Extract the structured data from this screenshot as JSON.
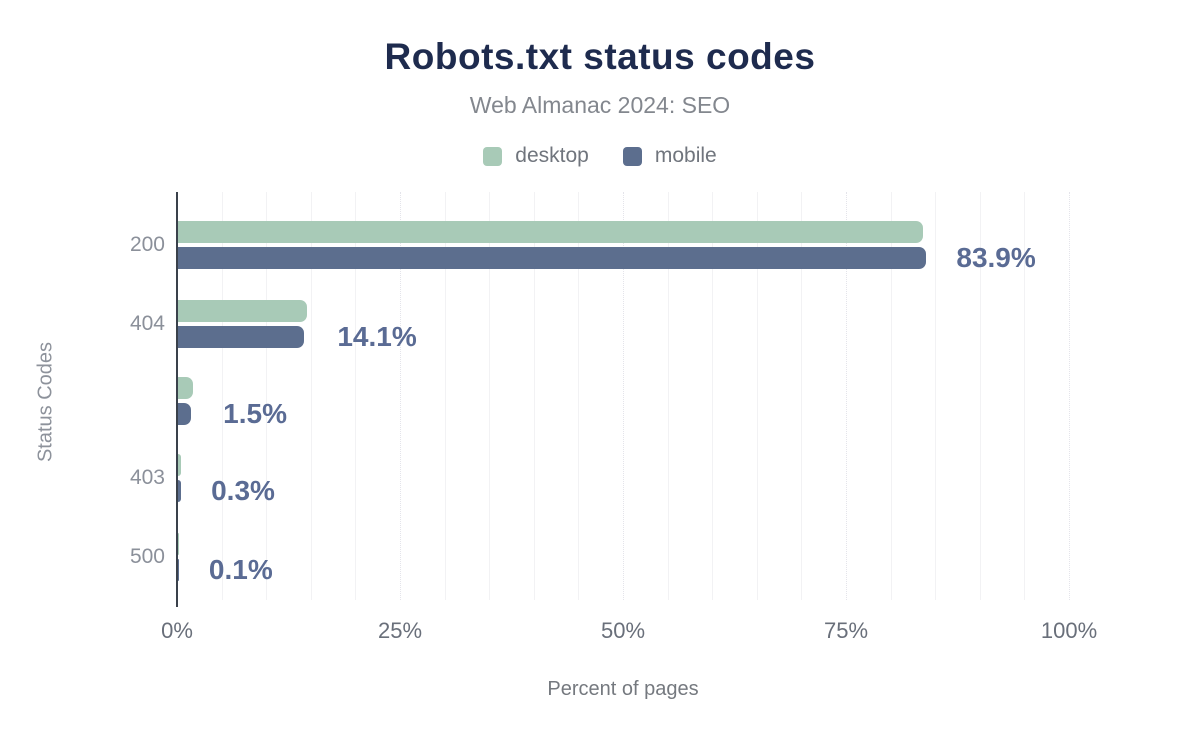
{
  "chart_data": {
    "type": "bar",
    "orientation": "horizontal",
    "title": "Robots.txt status codes",
    "subtitle": "Web Almanac 2024: SEO",
    "xlabel": "Percent of pages",
    "ylabel": "Status Codes",
    "categories": [
      "200",
      "404",
      "",
      "403",
      "500"
    ],
    "series": [
      {
        "name": "desktop",
        "color": "#a8cab7",
        "values": [
          83.5,
          14.5,
          1.7,
          0.35,
          0.1
        ]
      },
      {
        "name": "mobile",
        "color": "#5c6e8e",
        "values": [
          83.9,
          14.1,
          1.5,
          0.3,
          0.1
        ]
      }
    ],
    "value_labels": [
      "83.9%",
      "14.1%",
      "1.5%",
      "0.3%",
      "0.1%"
    ],
    "x_ticks": [
      {
        "label": "0%",
        "value": 0
      },
      {
        "label": "25%",
        "value": 25
      },
      {
        "label": "50%",
        "value": 50
      },
      {
        "label": "75%",
        "value": 75
      },
      {
        "label": "100%",
        "value": 100
      }
    ],
    "xlim": [
      0,
      100
    ],
    "grid_step_pct": 5,
    "grid": true,
    "legend_position": "top",
    "colors": {
      "title": "#1e2b4e",
      "subtitle": "#83878e",
      "value_label": "#5a6b94",
      "axis_line": "#3a414b",
      "desktop": "#a8cab7",
      "mobile": "#5c6e8e"
    }
  }
}
